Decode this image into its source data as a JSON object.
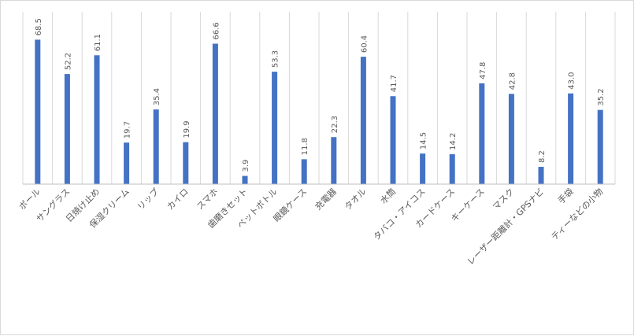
{
  "chart_data": {
    "type": "bar",
    "title": "",
    "xlabel": "",
    "ylabel": "",
    "ylim": [
      0,
      70
    ],
    "grid": {
      "vertical": true,
      "horizontal": false
    },
    "legend": "none",
    "colors": {
      "bar": "#4472c4",
      "grid": "#d9d9d9",
      "axis": "#bfbfbf",
      "label": "#595959"
    },
    "categories": [
      "ボール",
      "サングラス",
      "日焼け止め",
      "保湿クリーム",
      "リップ",
      "カイロ",
      "スマホ",
      "歯磨きセット",
      "ペットボトル",
      "眼鏡ケース",
      "充電器",
      "タオル",
      "水筒",
      "タバコ・アイコス",
      "カードケース",
      "キーケース",
      "マスク",
      "レーザー距離計・GPSナビ",
      "手袋",
      "ティーなどの小物"
    ],
    "values": [
      68.5,
      52.2,
      61.1,
      19.7,
      35.4,
      19.9,
      66.6,
      3.9,
      53.3,
      11.8,
      22.3,
      60.4,
      41.7,
      14.5,
      14.2,
      47.8,
      42.8,
      8.2,
      43.0,
      35.2
    ],
    "data_labels": [
      "68.5",
      "52.2",
      "61.1",
      "19.7",
      "35.4",
      "19.9",
      "66.6",
      "3.9",
      "53.3",
      "11.8",
      "22.3",
      "60.4",
      "41.7",
      "14.5",
      "14.2",
      "47.8",
      "42.8",
      "8.2",
      "43.0",
      "35.2"
    ]
  }
}
